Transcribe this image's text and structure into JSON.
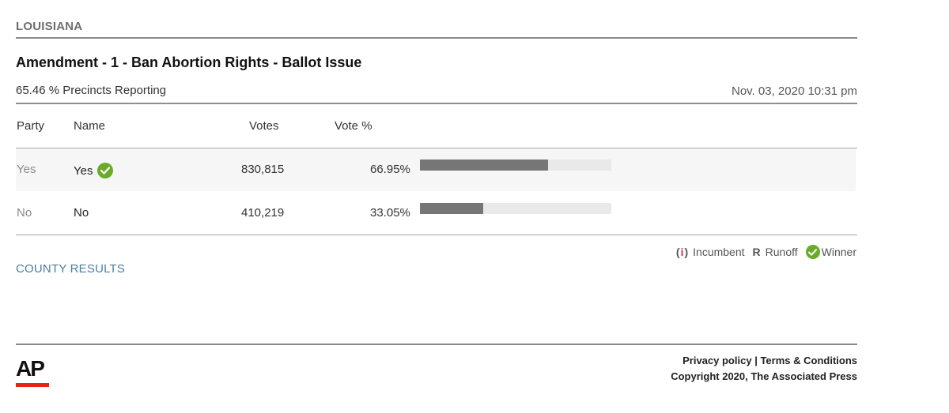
{
  "header": {
    "state": "LOUISIANA",
    "race_title": "Amendment - 1 - Ban Abortion Rights - Ballot Issue",
    "reporting": "65.46 % Precincts Reporting",
    "timestamp": "Nov. 03, 2020 10:31 pm"
  },
  "table": {
    "columns": {
      "party": "Party",
      "name": "Name",
      "votes": "Votes",
      "vote_pct": "Vote %"
    },
    "rows": [
      {
        "party": "Yes",
        "name": "Yes",
        "votes": "830,815",
        "pct_label": "66.95%",
        "pct_value": 66.95,
        "winner": true
      },
      {
        "party": "No",
        "name": "No",
        "votes": "410,219",
        "pct_label": "33.05%",
        "pct_value": 33.05,
        "winner": false
      }
    ]
  },
  "legend": {
    "incumbent_symbol_open": "(",
    "incumbent_symbol_i": "i",
    "incumbent_symbol_close": ")",
    "incumbent": "Incumbent",
    "runoff_symbol": "R",
    "runoff": "Runoff",
    "winner": "Winner"
  },
  "links": {
    "county_results": "COUNTY RESULTS"
  },
  "footer": {
    "logo_text": "AP",
    "privacy": "Privacy policy",
    "separator": "|",
    "terms": "Terms & Conditions",
    "copyright": "Copyright 2020, The Associated Press"
  },
  "colors": {
    "winner_check": "#6bab2a",
    "bar_fill": "#767676",
    "bar_track": "#e9e9e9",
    "link": "#4a7fa8",
    "ap_red": "#e3241b"
  },
  "icons": {
    "winner": "check-circle-icon",
    "incumbent": "incumbent-icon",
    "runoff": "runoff-icon"
  }
}
